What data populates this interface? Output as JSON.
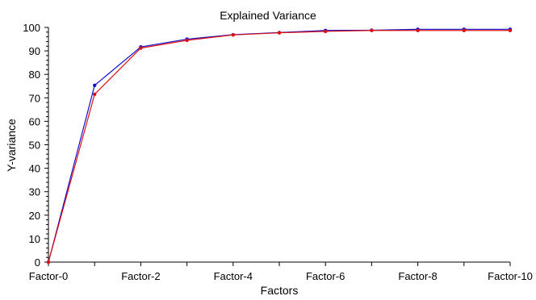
{
  "chart_data": {
    "type": "line",
    "title": "Explained Variance",
    "xlabel": "Factors",
    "ylabel": "Y-variance",
    "ylim": [
      0,
      100
    ],
    "yticks": [
      0,
      10,
      20,
      30,
      40,
      50,
      60,
      70,
      80,
      90,
      100
    ],
    "x": [
      0,
      1,
      2,
      3,
      4,
      5,
      6,
      7,
      8,
      9,
      10
    ],
    "xtick_labels": [
      "Factor-0",
      "",
      "Factor-2",
      "",
      "Factor-4",
      "",
      "Factor-6",
      "",
      "Factor-8",
      "",
      "Factor-10"
    ],
    "grid": false,
    "legend": "none",
    "series": [
      {
        "color": "#1010d0",
        "values": [
          0,
          75.3,
          91.7,
          95.0,
          96.9,
          97.8,
          98.7,
          98.8,
          99.2,
          99.2,
          99.2
        ]
      },
      {
        "color": "#e01010",
        "values": [
          0,
          71.5,
          91.2,
          94.5,
          96.8,
          97.7,
          98.3,
          98.7,
          98.7,
          98.7,
          98.7
        ]
      }
    ]
  }
}
